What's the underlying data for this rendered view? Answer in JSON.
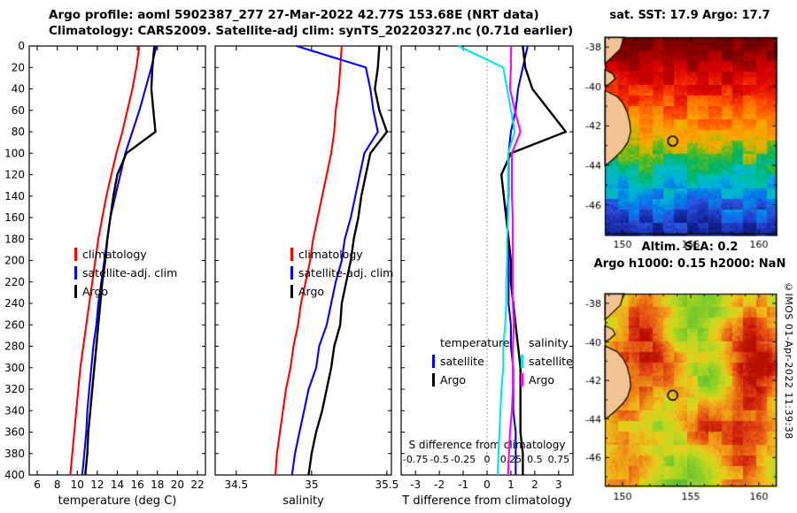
{
  "header": {
    "title_line1": "Argo profile: aoml 5902387_277 27-Mar-2022 42.77S 153.68E (NRT data)",
    "title_line2": "Climatology: CARS2009. Satellite-adj clim: synTS_20220327.nc (0.71d earlier)"
  },
  "watermark": "©IMOS 01-Apr-2022 11:39:38",
  "chart_data": [
    {
      "type": "line",
      "name": "temperature-profile",
      "xlabel": "temperature (deg C)",
      "xlim": [
        5.2,
        22.8
      ],
      "xticks": [
        6,
        8,
        10,
        12,
        14,
        16,
        18,
        20,
        22
      ],
      "ylim": [
        0,
        400
      ],
      "ystep": 20,
      "depths": [
        0,
        20,
        40,
        60,
        80,
        100,
        120,
        140,
        160,
        180,
        200,
        220,
        240,
        260,
        280,
        300,
        320,
        340,
        360,
        380,
        400
      ],
      "series": [
        {
          "name": "climatology",
          "color": "#ff0000",
          "values": [
            16.2,
            15.9,
            15.5,
            15.0,
            14.5,
            13.9,
            13.4,
            12.9,
            12.5,
            12.1,
            11.8,
            11.5,
            11.2,
            10.9,
            10.6,
            10.3,
            10.1,
            9.9,
            9.7,
            9.5,
            9.3
          ]
        },
        {
          "name": "satellite-adj. clim",
          "color": "#0000ff",
          "values": [
            17.9,
            17.4,
            16.8,
            16.2,
            15.5,
            14.8,
            14.3,
            13.8,
            13.3,
            13.0,
            12.7,
            12.4,
            12.1,
            11.9,
            11.6,
            11.4,
            11.2,
            11.0,
            10.9,
            10.7,
            10.5
          ]
        },
        {
          "name": "Argo",
          "color": "#000000",
          "width": 2.4,
          "values": [
            17.7,
            17.5,
            17.4,
            17.6,
            17.8,
            14.9,
            14.0,
            13.6,
            13.3,
            13.0,
            12.8,
            12.5,
            12.3,
            12.1,
            11.9,
            11.7,
            11.5,
            11.3,
            11.1,
            11.0,
            10.8
          ]
        }
      ],
      "legend": [
        {
          "label": "climatology",
          "color": "#ff0000"
        },
        {
          "label": "satellite-adj. clim",
          "color": "#0000ff"
        },
        {
          "label": "Argo",
          "color": "#000000"
        }
      ]
    },
    {
      "type": "line",
      "name": "salinity-profile",
      "xlabel": "salinity",
      "xlim": [
        34.36,
        35.53
      ],
      "xticks": [
        34.5,
        35,
        35.5
      ],
      "ylim": [
        0,
        400
      ],
      "ystep": 20,
      "depths": [
        0,
        20,
        40,
        60,
        80,
        100,
        120,
        140,
        160,
        180,
        200,
        220,
        240,
        260,
        280,
        300,
        320,
        340,
        360,
        380,
        400
      ],
      "series": [
        {
          "name": "climatology",
          "color": "#ff0000",
          "values": [
            35.2,
            35.19,
            35.18,
            35.16,
            35.15,
            35.13,
            35.1,
            35.07,
            35.04,
            35.01,
            34.99,
            34.96,
            34.93,
            34.91,
            34.88,
            34.86,
            34.83,
            34.81,
            34.79,
            34.77,
            34.76
          ]
        },
        {
          "name": "satellite-adj. clim",
          "color": "#0000ff",
          "values": [
            34.9,
            35.36,
            35.39,
            35.41,
            35.44,
            35.35,
            35.32,
            35.29,
            35.26,
            35.22,
            35.2,
            35.16,
            35.13,
            35.1,
            35.05,
            35.03,
            34.98,
            34.95,
            34.92,
            34.89,
            34.87
          ]
        },
        {
          "name": "Argo",
          "color": "#000000",
          "width": 2.4,
          "values": [
            35.45,
            35.44,
            35.42,
            35.45,
            35.5,
            35.39,
            35.36,
            35.33,
            35.31,
            35.28,
            35.26,
            35.23,
            35.2,
            35.19,
            35.15,
            35.13,
            35.1,
            35.07,
            35.03,
            35.0,
            34.98
          ]
        }
      ],
      "legend": [
        {
          "label": "climatology",
          "color": "#ff0000"
        },
        {
          "label": "satellite-adj. clim",
          "color": "#0000ff"
        },
        {
          "label": "Argo",
          "color": "#000000"
        }
      ]
    },
    {
      "type": "line",
      "name": "difference-profile",
      "xlabel": "T difference from climatology",
      "xlim": [
        -3.6,
        3.6
      ],
      "xticks": [
        -3,
        -2,
        -1,
        0,
        1,
        2,
        3
      ],
      "ylim": [
        0,
        400
      ],
      "ystep": 20,
      "zero_line": true,
      "inner_axis": {
        "label": "S difference from climatology",
        "ticks": [
          -0.75,
          -0.5,
          -0.25,
          0,
          0.25,
          0.5,
          0.75
        ],
        "scale": 4
      },
      "depths": [
        0,
        20,
        40,
        60,
        80,
        100,
        120,
        140,
        160,
        180,
        200,
        220,
        240,
        260,
        280,
        300,
        320,
        340,
        360,
        380,
        400
      ],
      "series": [
        {
          "name": "T diff satellite",
          "color": "#0000ff",
          "values": [
            1.7,
            1.5,
            1.3,
            1.2,
            1.0,
            0.9,
            0.9,
            0.9,
            0.8,
            0.9,
            0.9,
            0.9,
            0.9,
            1.0,
            1.0,
            1.1,
            1.1,
            1.1,
            1.2,
            1.2,
            1.2
          ]
        },
        {
          "name": "T diff Argo",
          "color": "#000000",
          "width": 2.4,
          "values": [
            1.5,
            1.6,
            1.9,
            2.6,
            3.3,
            1.0,
            0.6,
            0.7,
            0.8,
            0.9,
            1.0,
            1.0,
            1.1,
            1.2,
            1.3,
            1.4,
            1.4,
            1.4,
            1.4,
            1.5,
            1.5
          ]
        },
        {
          "name": "S diff satellite",
          "color": "#00e5ee",
          "scale": 4,
          "values": [
            -0.3,
            0.17,
            0.21,
            0.25,
            0.29,
            0.22,
            0.22,
            0.22,
            0.22,
            0.21,
            0.21,
            0.2,
            0.2,
            0.19,
            0.17,
            0.17,
            0.15,
            0.14,
            0.13,
            0.12,
            0.11
          ]
        },
        {
          "name": "S diff Argo",
          "color": "#ff00ff",
          "scale": 4,
          "values": [
            0.25,
            0.25,
            0.24,
            0.29,
            0.35,
            0.26,
            0.26,
            0.26,
            0.27,
            0.27,
            0.27,
            0.27,
            0.27,
            0.28,
            0.27,
            0.27,
            0.27,
            0.26,
            0.24,
            0.23,
            0.22
          ]
        }
      ],
      "legend_columns": [
        {
          "header": "temperature",
          "entries": [
            {
              "label": "satellite",
              "color": "#0000ff"
            },
            {
              "label": "Argo",
              "color": "#000000"
            }
          ]
        },
        {
          "header": "salinity",
          "entries": [
            {
              "label": "satellite",
              "color": "#00e5ee"
            },
            {
              "label": "Argo",
              "color": "#ff00ff"
            }
          ]
        }
      ]
    },
    {
      "type": "heatmap",
      "name": "sst-map",
      "title": "sat. SST: 17.9 Argo: 17.7",
      "values": {
        "sat_sst": 17.9,
        "argo_sst": 17.7
      },
      "lon_range": [
        148.7,
        161.3
      ],
      "lat_range": [
        -37.5,
        -47.5
      ],
      "lon_ticks": [
        150,
        155,
        160
      ],
      "lat_ticks": [
        -38,
        -40,
        -42,
        -44,
        -46
      ],
      "marker": {
        "lon": 153.68,
        "lat": -42.77
      },
      "mode": "banded",
      "seed": 11,
      "land_color": "#f3c493",
      "palette": [
        [
          0,
          "#6e0000"
        ],
        [
          0.06,
          "#8f0000"
        ],
        [
          0.13,
          "#b80000"
        ],
        [
          0.2,
          "#d40000"
        ],
        [
          0.28,
          "#ee2200"
        ],
        [
          0.35,
          "#ff5500"
        ],
        [
          0.42,
          "#ff8800"
        ],
        [
          0.48,
          "#ffaa00"
        ],
        [
          0.53,
          "#c8b400"
        ],
        [
          0.58,
          "#55bb22"
        ],
        [
          0.64,
          "#00b366"
        ],
        [
          0.7,
          "#00bfae"
        ],
        [
          0.76,
          "#00b4d8"
        ],
        [
          0.82,
          "#0080e8"
        ],
        [
          0.88,
          "#2a52e0"
        ],
        [
          0.94,
          "#1c36b8"
        ],
        [
          1,
          "#101e8c"
        ]
      ],
      "coast": [
        [
          [
            0,
            0.115
          ],
          [
            0.03,
            0.1
          ],
          [
            0.06,
            0.09
          ],
          [
            0.09,
            0.055
          ],
          [
            0.12,
            0.02
          ],
          [
            0.135,
            0
          ]
        ],
        [
          [
            0.165,
            0
          ],
          [
            0.185,
            0.045
          ],
          [
            0.21,
            0.06
          ],
          [
            0.235,
            0.03
          ],
          [
            0.25,
            0
          ]
        ],
        [
          [
            0.27,
            0
          ],
          [
            0.3,
            0.07
          ],
          [
            0.335,
            0.105
          ],
          [
            0.38,
            0.13
          ],
          [
            0.43,
            0.145
          ],
          [
            0.48,
            0.15
          ],
          [
            0.53,
            0.135
          ],
          [
            0.57,
            0.105
          ],
          [
            0.61,
            0.06
          ],
          [
            0.64,
            0.02
          ],
          [
            0.65,
            0
          ]
        ]
      ]
    },
    {
      "type": "heatmap",
      "name": "sla-map",
      "title_line1": "Altim. SLA: 0.2",
      "title_line2": "Argo h1000: 0.15 h2000: NaN",
      "values": {
        "sla": 0.2,
        "h1000": 0.15,
        "h2000": "NaN"
      },
      "lon_range": [
        148.7,
        161.3
      ],
      "lat_range": [
        -37.5,
        -47.5
      ],
      "lon_ticks": [
        150,
        155,
        160
      ],
      "lat_ticks": [
        -38,
        -40,
        -42,
        -44,
        -46
      ],
      "marker": {
        "lon": 153.68,
        "lat": -42.77
      },
      "mode": "blobs",
      "seed": 23,
      "base": 0.45,
      "land_color": "#f3c493",
      "palette": [
        [
          0,
          "#0090b0"
        ],
        [
          0.12,
          "#20a860"
        ],
        [
          0.25,
          "#55bb33"
        ],
        [
          0.4,
          "#8cce28"
        ],
        [
          0.52,
          "#c4d820"
        ],
        [
          0.62,
          "#e8cc1c"
        ],
        [
          0.72,
          "#f0a018"
        ],
        [
          0.82,
          "#e86614"
        ],
        [
          0.92,
          "#d83010"
        ],
        [
          1,
          "#b81000"
        ]
      ],
      "blobs": [
        [
          0.25,
          0.08,
          0.18,
          0.35
        ],
        [
          0.6,
          0.05,
          0.15,
          -0.2
        ],
        [
          0.85,
          0.1,
          0.12,
          0.3
        ],
        [
          0.45,
          0.2,
          0.1,
          -0.25
        ],
        [
          0.7,
          0.25,
          0.14,
          0.25
        ],
        [
          0.15,
          0.3,
          0.12,
          0.2
        ],
        [
          0.9,
          0.35,
          0.1,
          0.45
        ],
        [
          0.35,
          0.4,
          0.15,
          0.3
        ],
        [
          0.6,
          0.45,
          0.1,
          -0.3
        ],
        [
          0.1,
          0.55,
          0.1,
          0.25
        ],
        [
          0.8,
          0.55,
          0.13,
          0.35
        ],
        [
          0.3,
          0.65,
          0.12,
          -0.2
        ],
        [
          0.55,
          0.7,
          0.12,
          0.4
        ],
        [
          0.9,
          0.75,
          0.1,
          0.2
        ],
        [
          0.2,
          0.8,
          0.14,
          0.3
        ],
        [
          0.5,
          0.88,
          0.12,
          -0.25
        ],
        [
          0.75,
          0.9,
          0.12,
          0.35
        ],
        [
          0.05,
          0.95,
          0.1,
          0.2
        ]
      ],
      "coast": [
        [
          [
            0,
            0.115
          ],
          [
            0.03,
            0.1
          ],
          [
            0.06,
            0.09
          ],
          [
            0.09,
            0.055
          ],
          [
            0.12,
            0.02
          ],
          [
            0.135,
            0
          ]
        ],
        [
          [
            0.165,
            0
          ],
          [
            0.185,
            0.045
          ],
          [
            0.21,
            0.06
          ],
          [
            0.235,
            0.03
          ],
          [
            0.25,
            0
          ]
        ],
        [
          [
            0.27,
            0
          ],
          [
            0.3,
            0.07
          ],
          [
            0.335,
            0.105
          ],
          [
            0.38,
            0.13
          ],
          [
            0.43,
            0.145
          ],
          [
            0.48,
            0.15
          ],
          [
            0.53,
            0.135
          ],
          [
            0.57,
            0.105
          ],
          [
            0.61,
            0.06
          ],
          [
            0.64,
            0.02
          ],
          [
            0.65,
            0
          ]
        ]
      ]
    }
  ]
}
